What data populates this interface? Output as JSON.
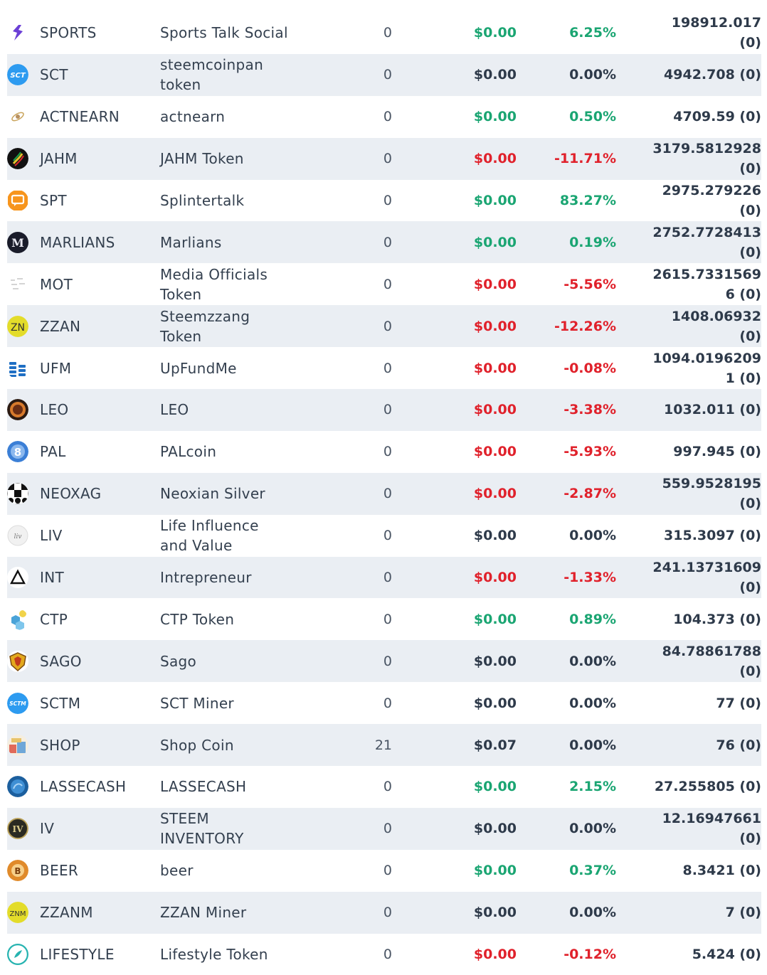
{
  "colors": {
    "positive": "#1aa572",
    "negative": "#e0212b",
    "neutral": "#2e3a4a",
    "row_alt": "#eaeef3"
  },
  "rows": [
    {
      "symbol": "SPORTS",
      "name": "Sports Talk Social",
      "qty": "0",
      "price": "$0.00",
      "change": "6.25%",
      "trend": "pos",
      "balance": "198912.017 (0)",
      "icon": "sports-icon"
    },
    {
      "symbol": "SCT",
      "name": "steemcoinpan token",
      "qty": "0",
      "price": "$0.00",
      "change": "0.00%",
      "trend": "neu",
      "balance": "4942.708 (0)",
      "icon": "sct-icon"
    },
    {
      "symbol": "ACTNEARN",
      "name": "actnearn",
      "qty": "0",
      "price": "$0.00",
      "change": "0.50%",
      "trend": "pos",
      "balance": "4709.59 (0)",
      "icon": "actnearn-icon"
    },
    {
      "symbol": "JAHM",
      "name": "JAHM Token",
      "qty": "0",
      "price": "$0.00",
      "change": "-11.71%",
      "trend": "neg",
      "balance": "3179.5812928 (0)",
      "icon": "jahm-icon"
    },
    {
      "symbol": "SPT",
      "name": "Splintertalk",
      "qty": "0",
      "price": "$0.00",
      "change": "83.27%",
      "trend": "pos",
      "balance": "2975.279226 (0)",
      "icon": "spt-icon"
    },
    {
      "symbol": "MARLIANS",
      "name": "Marlians",
      "qty": "0",
      "price": "$0.00",
      "change": "0.19%",
      "trend": "pos",
      "balance": "2752.7728413 (0)",
      "icon": "marlians-icon"
    },
    {
      "symbol": "MOT",
      "name": "Media Officials Token",
      "qty": "0",
      "price": "$0.00",
      "change": "-5.56%",
      "trend": "neg",
      "balance": "2615.73315696 (0)",
      "icon": "mot-icon"
    },
    {
      "symbol": "ZZAN",
      "name": "Steemzzang Token",
      "qty": "0",
      "price": "$0.00",
      "change": "-12.26%",
      "trend": "neg",
      "balance": "1408.06932 (0)",
      "icon": "zzan-icon"
    },
    {
      "symbol": "UFM",
      "name": "UpFundMe",
      "qty": "0",
      "price": "$0.00",
      "change": "-0.08%",
      "trend": "neg",
      "balance": "1094.01962091 (0)",
      "icon": "ufm-icon"
    },
    {
      "symbol": "LEO",
      "name": "LEO",
      "qty": "0",
      "price": "$0.00",
      "change": "-3.38%",
      "trend": "neg",
      "balance": "1032.011 (0)",
      "icon": "leo-icon"
    },
    {
      "symbol": "PAL",
      "name": "PALcoin",
      "qty": "0",
      "price": "$0.00",
      "change": "-5.93%",
      "trend": "neg",
      "balance": "997.945 (0)",
      "icon": "pal-icon"
    },
    {
      "symbol": "NEOXAG",
      "name": "Neoxian Silver",
      "qty": "0",
      "price": "$0.00",
      "change": "-2.87%",
      "trend": "neg",
      "balance": "559.9528195 (0)",
      "icon": "neoxag-icon"
    },
    {
      "symbol": "LIV",
      "name": "Life Influence and Value",
      "qty": "0",
      "price": "$0.00",
      "change": "0.00%",
      "trend": "neu",
      "balance": "315.3097 (0)",
      "icon": "liv-icon"
    },
    {
      "symbol": "INT",
      "name": "Intrepreneur",
      "qty": "0",
      "price": "$0.00",
      "change": "-1.33%",
      "trend": "neg",
      "balance": "241.13731609 (0)",
      "icon": "int-icon"
    },
    {
      "symbol": "CTP",
      "name": "CTP Token",
      "qty": "0",
      "price": "$0.00",
      "change": "0.89%",
      "trend": "pos",
      "balance": "104.373 (0)",
      "icon": "ctp-icon"
    },
    {
      "symbol": "SAGO",
      "name": "Sago",
      "qty": "0",
      "price": "$0.00",
      "change": "0.00%",
      "trend": "neu",
      "balance": "84.78861788 (0)",
      "icon": "sago-icon"
    },
    {
      "symbol": "SCTM",
      "name": "SCT Miner",
      "qty": "0",
      "price": "$0.00",
      "change": "0.00%",
      "trend": "neu",
      "balance": "77 (0)",
      "icon": "sctm-icon"
    },
    {
      "symbol": "SHOP",
      "name": "Shop Coin",
      "qty": "21",
      "price": "$0.07",
      "change": "0.00%",
      "trend": "neu",
      "balance": "76 (0)",
      "icon": "shop-icon"
    },
    {
      "symbol": "LASSECASH",
      "name": "LASSECASH",
      "qty": "0",
      "price": "$0.00",
      "change": "2.15%",
      "trend": "pos",
      "balance": "27.255805 (0)",
      "icon": "lassecash-icon"
    },
    {
      "symbol": "IV",
      "name": "STEEM INVENTORY",
      "qty": "0",
      "price": "$0.00",
      "change": "0.00%",
      "trend": "neu",
      "balance": "12.16947661 (0)",
      "icon": "iv-icon"
    },
    {
      "symbol": "BEER",
      "name": "beer",
      "qty": "0",
      "price": "$0.00",
      "change": "0.37%",
      "trend": "pos",
      "balance": "8.3421 (0)",
      "icon": "beer-icon"
    },
    {
      "symbol": "ZZANM",
      "name": "ZZAN Miner",
      "qty": "0",
      "price": "$0.00",
      "change": "0.00%",
      "trend": "neu",
      "balance": "7 (0)",
      "icon": "zzanm-icon"
    },
    {
      "symbol": "LIFESTYLE",
      "name": "Lifestyle Token",
      "qty": "0",
      "price": "$0.00",
      "change": "-0.12%",
      "trend": "neg",
      "balance": "5.424 (0)",
      "icon": "lifestyle-icon"
    }
  ]
}
